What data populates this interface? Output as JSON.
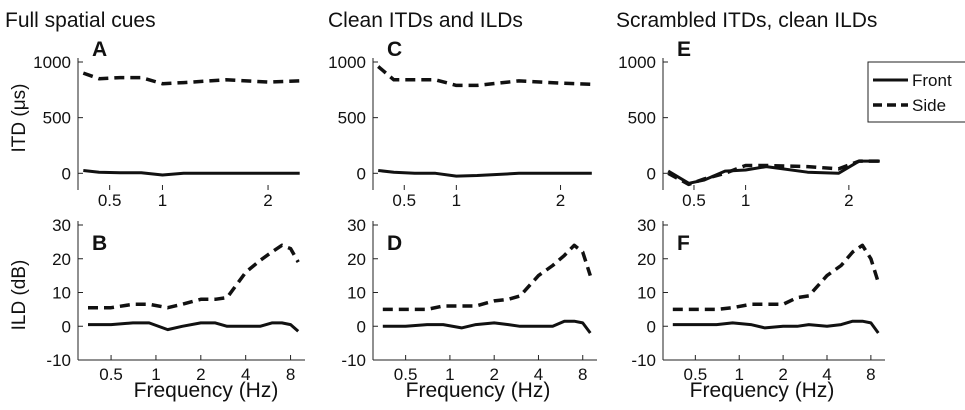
{
  "column_titles": [
    "Full spatial cues",
    "Clean ITDs and ILDs",
    "Scrambled ITDs, clean ILDs"
  ],
  "legend": {
    "front": "Front",
    "side": "Side"
  },
  "chart_data": [
    {
      "panel": "A",
      "type": "line",
      "ylabel": "ITD (μs)",
      "ylim": [
        -150,
        1000
      ],
      "yticks": [
        0,
        500,
        1000
      ],
      "x_axis": "linear",
      "xlim": [
        0.2,
        2.35
      ],
      "xticks": [
        0.5,
        1,
        2
      ],
      "series": [
        {
          "name": "Front",
          "x": [
            0.25,
            0.4,
            0.6,
            0.8,
            1.0,
            1.2,
            1.6,
            2.0,
            2.3
          ],
          "values": [
            25,
            10,
            5,
            5,
            -15,
            0,
            0,
            0,
            0
          ]
        },
        {
          "name": "Side",
          "x": [
            0.25,
            0.4,
            0.6,
            0.8,
            1.0,
            1.2,
            1.6,
            2.0,
            2.3
          ],
          "values": [
            900,
            850,
            860,
            860,
            805,
            815,
            840,
            820,
            830
          ]
        }
      ]
    },
    {
      "panel": "C",
      "type": "line",
      "ylim": [
        -150,
        1000
      ],
      "yticks": [
        0,
        500,
        1000
      ],
      "x_axis": "linear",
      "xlim": [
        0.2,
        2.35
      ],
      "xticks": [
        0.5,
        1,
        2
      ],
      "series": [
        {
          "name": "Front",
          "x": [
            0.25,
            0.4,
            0.6,
            0.8,
            1.0,
            1.2,
            1.6,
            2.0,
            2.3
          ],
          "values": [
            25,
            10,
            0,
            0,
            -25,
            -20,
            0,
            0,
            0
          ]
        },
        {
          "name": "Side",
          "x": [
            0.25,
            0.4,
            0.6,
            0.8,
            1.0,
            1.2,
            1.6,
            2.0,
            2.3
          ],
          "values": [
            960,
            840,
            840,
            840,
            790,
            790,
            830,
            810,
            800
          ]
        }
      ]
    },
    {
      "panel": "E",
      "type": "line",
      "ylim": [
        -150,
        1000
      ],
      "yticks": [
        0,
        500,
        1000
      ],
      "x_axis": "linear",
      "xlim": [
        0.2,
        2.35
      ],
      "xticks": [
        0.5,
        1,
        2
      ],
      "series": [
        {
          "name": "Front",
          "x": [
            0.25,
            0.45,
            0.6,
            0.8,
            1.0,
            1.2,
            1.6,
            1.9,
            2.1,
            2.3
          ],
          "values": [
            20,
            -90,
            -60,
            20,
            30,
            60,
            10,
            0,
            110,
            110
          ]
        },
        {
          "name": "Side",
          "x": [
            0.25,
            0.45,
            0.6,
            0.8,
            1.0,
            1.2,
            1.6,
            1.9,
            2.1,
            2.3
          ],
          "values": [
            0,
            -100,
            -50,
            0,
            70,
            70,
            60,
            40,
            110,
            110
          ]
        }
      ]
    },
    {
      "panel": "B",
      "type": "line",
      "ylabel": "ILD (dB)",
      "xlabel": "Frequency (Hz)",
      "ylim": [
        -10,
        30
      ],
      "yticks": [
        -10,
        0,
        10,
        20,
        30
      ],
      "x_axis": "log",
      "xlim": [
        0.3,
        10
      ],
      "xticks": [
        0.5,
        1,
        2,
        4,
        8
      ],
      "series": [
        {
          "name": "Front",
          "x": [
            0.35,
            0.5,
            0.7,
            0.9,
            1.2,
            1.5,
            2.0,
            2.5,
            3.0,
            4.0,
            5.0,
            6.0,
            7.0,
            8.0,
            9.0
          ],
          "values": [
            0.5,
            0.5,
            1,
            1,
            -1,
            0,
            1,
            1,
            0,
            0,
            0,
            1,
            1,
            0.5,
            -1.5
          ]
        },
        {
          "name": "Side",
          "x": [
            0.35,
            0.5,
            0.7,
            0.9,
            1.2,
            1.5,
            2.0,
            2.5,
            3.0,
            4.0,
            5.0,
            6.0,
            7.0,
            8.0,
            9.0
          ],
          "values": [
            5.5,
            5.5,
            6.5,
            6.5,
            5.5,
            6.5,
            8,
            8,
            8.5,
            16,
            19.5,
            22,
            24,
            23,
            19
          ]
        }
      ]
    },
    {
      "panel": "D",
      "type": "line",
      "xlabel": "Frequency (Hz)",
      "ylim": [
        -10,
        30
      ],
      "yticks": [
        -10,
        0,
        10,
        20,
        30
      ],
      "x_axis": "log",
      "xlim": [
        0.3,
        10
      ],
      "xticks": [
        0.5,
        1,
        2,
        4,
        8
      ],
      "series": [
        {
          "name": "Front",
          "x": [
            0.35,
            0.5,
            0.7,
            0.9,
            1.2,
            1.5,
            2.0,
            2.5,
            3.0,
            4.0,
            5.0,
            6.0,
            7.0,
            8.0,
            9.0
          ],
          "values": [
            0,
            0,
            0.5,
            0.5,
            -0.5,
            0.5,
            1,
            0.5,
            0,
            0,
            0,
            1.5,
            1.5,
            1,
            -2
          ]
        },
        {
          "name": "Side",
          "x": [
            0.35,
            0.5,
            0.7,
            0.9,
            1.2,
            1.5,
            2.0,
            2.5,
            3.0,
            4.0,
            5.0,
            6.0,
            7.0,
            8.0,
            9.0
          ],
          "values": [
            5,
            5,
            5,
            6,
            6,
            6,
            7.5,
            8,
            9,
            15,
            18,
            21,
            24,
            22,
            15
          ]
        }
      ]
    },
    {
      "panel": "F",
      "type": "line",
      "xlabel": "Frequency (Hz)",
      "ylim": [
        -10,
        30
      ],
      "yticks": [
        -10,
        0,
        10,
        20,
        30
      ],
      "x_axis": "log",
      "xlim": [
        0.3,
        10
      ],
      "xticks": [
        0.5,
        1,
        2,
        4,
        8
      ],
      "series": [
        {
          "name": "Front",
          "x": [
            0.35,
            0.5,
            0.7,
            0.9,
            1.2,
            1.5,
            2.0,
            2.5,
            3.0,
            4.0,
            5.0,
            6.0,
            7.0,
            8.0,
            9.0
          ],
          "values": [
            0.5,
            0.5,
            0.5,
            1,
            0.5,
            -0.5,
            0,
            0,
            0.5,
            0,
            0.5,
            1.5,
            1.5,
            1,
            -2
          ]
        },
        {
          "name": "Side",
          "x": [
            0.35,
            0.5,
            0.7,
            0.9,
            1.2,
            1.5,
            2.0,
            2.5,
            3.0,
            4.0,
            5.0,
            6.0,
            7.0,
            8.0,
            9.0
          ],
          "values": [
            5,
            5,
            5,
            5.5,
            6.5,
            6.5,
            6.5,
            8.5,
            9,
            15,
            18,
            22,
            24,
            20,
            13
          ]
        }
      ]
    }
  ]
}
